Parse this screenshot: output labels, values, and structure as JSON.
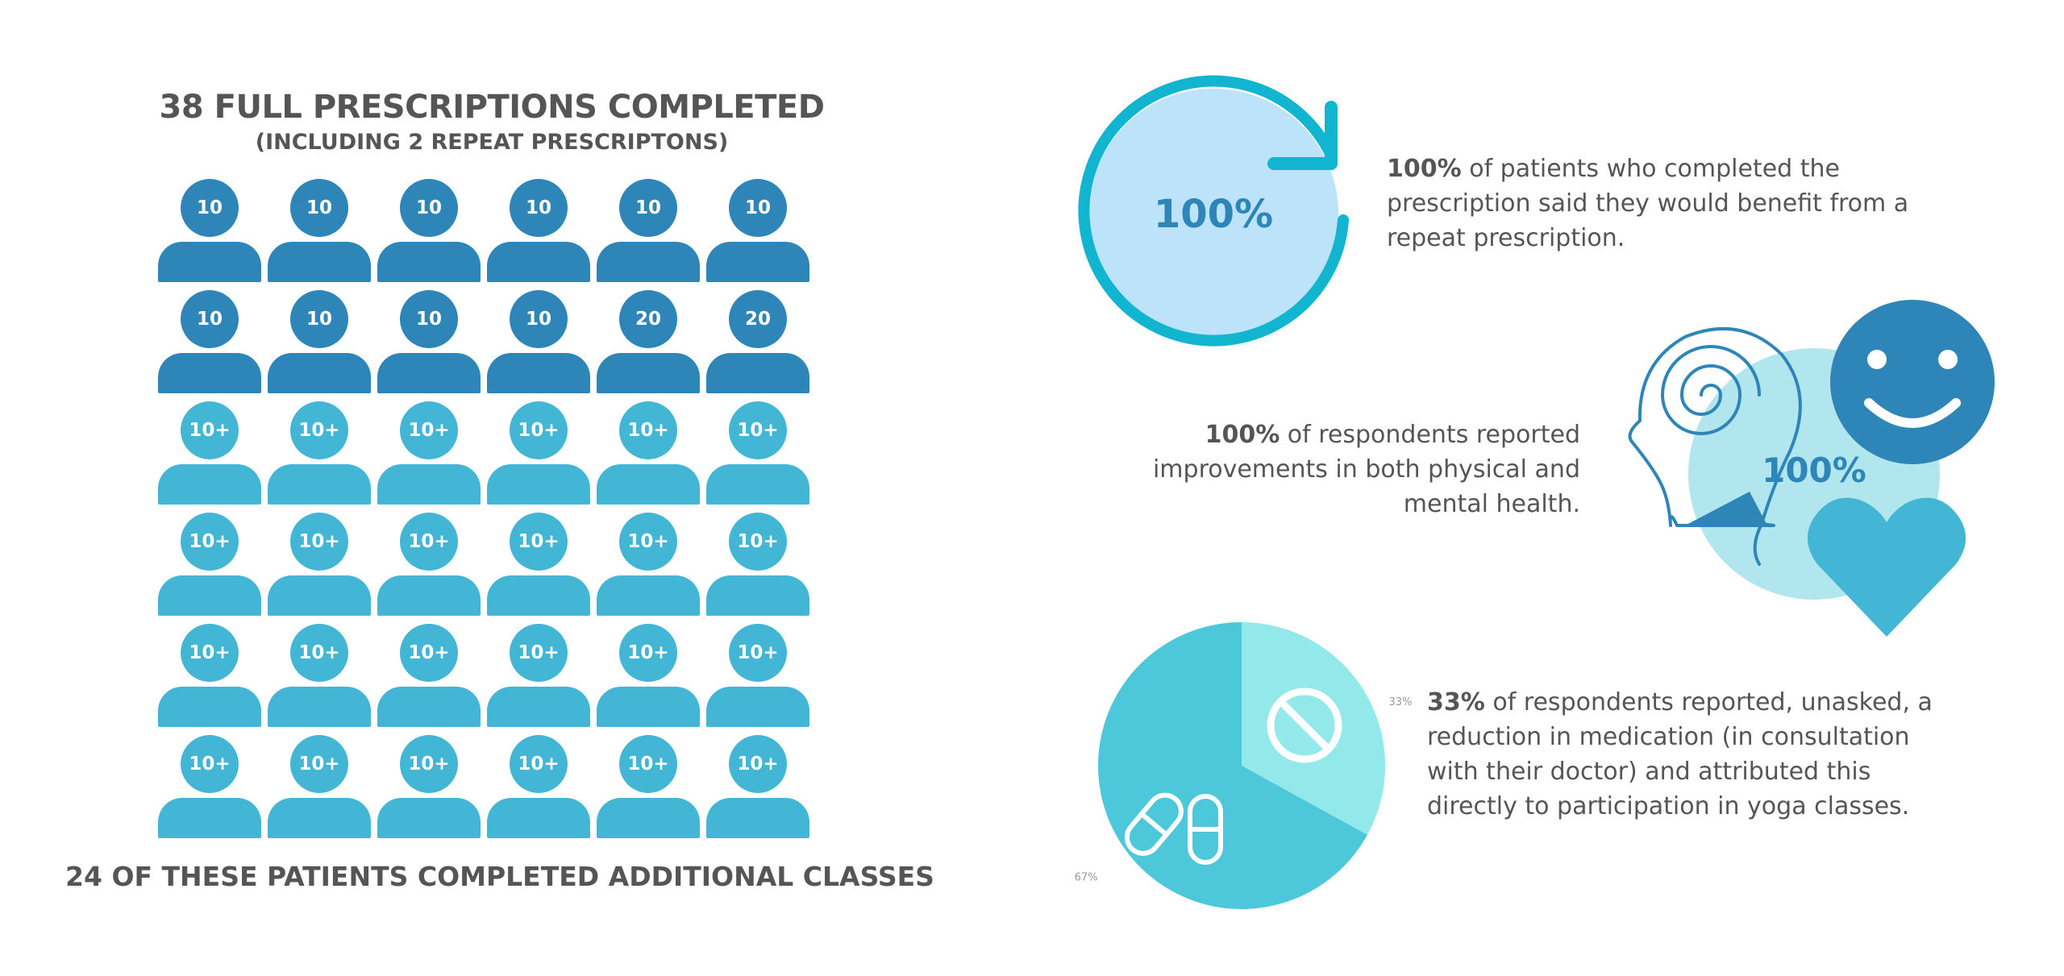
{
  "left": {
    "title": "38 FULL PRESCRIPTIONS COMPLETED",
    "subtitle": "(INCLUDING 2 REPEAT PRESCRIPTONS)",
    "footer": "24 OF THESE PATIENTS COMPLETED ADDITIONAL CLASSES",
    "people": [
      {
        "label": "10",
        "tone": "dark"
      },
      {
        "label": "10",
        "tone": "dark"
      },
      {
        "label": "10",
        "tone": "dark"
      },
      {
        "label": "10",
        "tone": "dark"
      },
      {
        "label": "10",
        "tone": "dark"
      },
      {
        "label": "10",
        "tone": "dark"
      },
      {
        "label": "10",
        "tone": "dark"
      },
      {
        "label": "10",
        "tone": "dark"
      },
      {
        "label": "10",
        "tone": "dark"
      },
      {
        "label": "10",
        "tone": "dark"
      },
      {
        "label": "20",
        "tone": "dark"
      },
      {
        "label": "20",
        "tone": "dark"
      },
      {
        "label": "10+",
        "tone": "light"
      },
      {
        "label": "10+",
        "tone": "light"
      },
      {
        "label": "10+",
        "tone": "light"
      },
      {
        "label": "10+",
        "tone": "light"
      },
      {
        "label": "10+",
        "tone": "light"
      },
      {
        "label": "10+",
        "tone": "light"
      },
      {
        "label": "10+",
        "tone": "light"
      },
      {
        "label": "10+",
        "tone": "light"
      },
      {
        "label": "10+",
        "tone": "light"
      },
      {
        "label": "10+",
        "tone": "light"
      },
      {
        "label": "10+",
        "tone": "light"
      },
      {
        "label": "10+",
        "tone": "light"
      },
      {
        "label": "10+",
        "tone": "light"
      },
      {
        "label": "10+",
        "tone": "light"
      },
      {
        "label": "10+",
        "tone": "light"
      },
      {
        "label": "10+",
        "tone": "light"
      },
      {
        "label": "10+",
        "tone": "light"
      },
      {
        "label": "10+",
        "tone": "light"
      },
      {
        "label": "10+",
        "tone": "light"
      },
      {
        "label": "10+",
        "tone": "light"
      },
      {
        "label": "10+",
        "tone": "light"
      },
      {
        "label": "10+",
        "tone": "light"
      },
      {
        "label": "10+",
        "tone": "light"
      },
      {
        "label": "10+",
        "tone": "light"
      }
    ]
  },
  "stat_repeat": {
    "badge": "100%",
    "bold": "100%",
    "text": " of patients who completed the prescription said they would benefit from a repeat prescription.",
    "icon": "refresh-circle-icon"
  },
  "stat_health": {
    "badge": "100%",
    "bold": "100%",
    "text": " of respondents reported improvements in both physical and mental health.",
    "icons": [
      "mind-head-icon",
      "smiley-icon",
      "heart-icon"
    ]
  },
  "stat_medication": {
    "bold": "33%",
    "text": " of respondents reported, unasked, a reduction in medication (in consultation with their doctor) and attributed this directly to participation in yoga classes.",
    "icons": [
      "no-symbol-icon",
      "pills-icon"
    ]
  },
  "chart_data": {
    "type": "pie",
    "categories": [
      "33%",
      "67%"
    ],
    "values": [
      33,
      67
    ],
    "colors": [
      "#93e8ea",
      "#4cc8da"
    ]
  },
  "colors": {
    "dark_blue": "#2e86b8",
    "mid_blue": "#43b6d6",
    "teal": "#12b5cf",
    "light_fill": "#bde3fb",
    "pale_teal": "#b2e6ee",
    "text": "#555555"
  }
}
